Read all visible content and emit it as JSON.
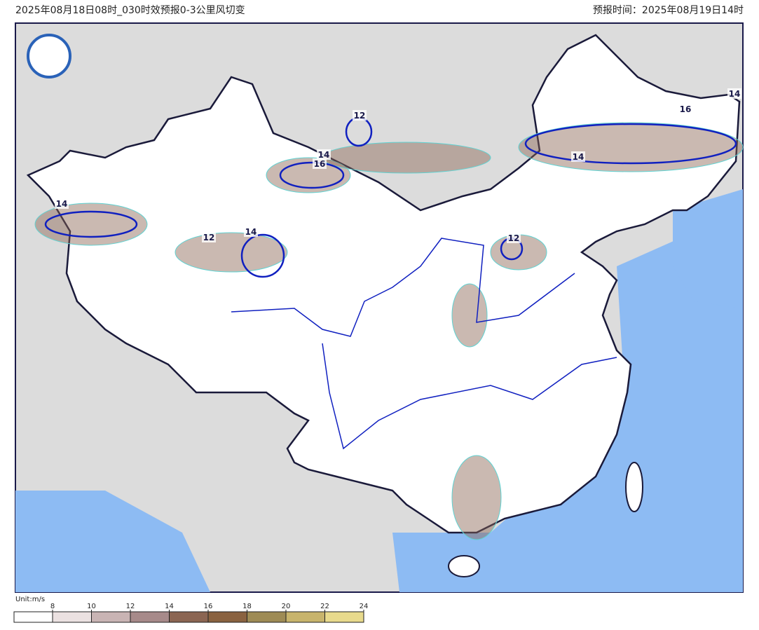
{
  "header": {
    "left": "2025年08月18日08时_030时效预报0-3公里风切变",
    "right": "预报时间：2025年08月19日14时"
  },
  "contour_labels": [
    "12",
    "14",
    "16",
    "14",
    "12",
    "14",
    "14",
    "16",
    "14",
    "12"
  ],
  "colorbar": {
    "unit": "Unit:m/s",
    "ticks": [
      8,
      10,
      12,
      14,
      16,
      18,
      20,
      22,
      24
    ],
    "colors": [
      "#ffffff",
      "#ebe1e1",
      "#c9b4b4",
      "#a78a8a",
      "#8b6552",
      "#8a6240",
      "#9e8b55",
      "#c8b46c",
      "#e8da8c",
      "#d8ee90"
    ]
  }
}
